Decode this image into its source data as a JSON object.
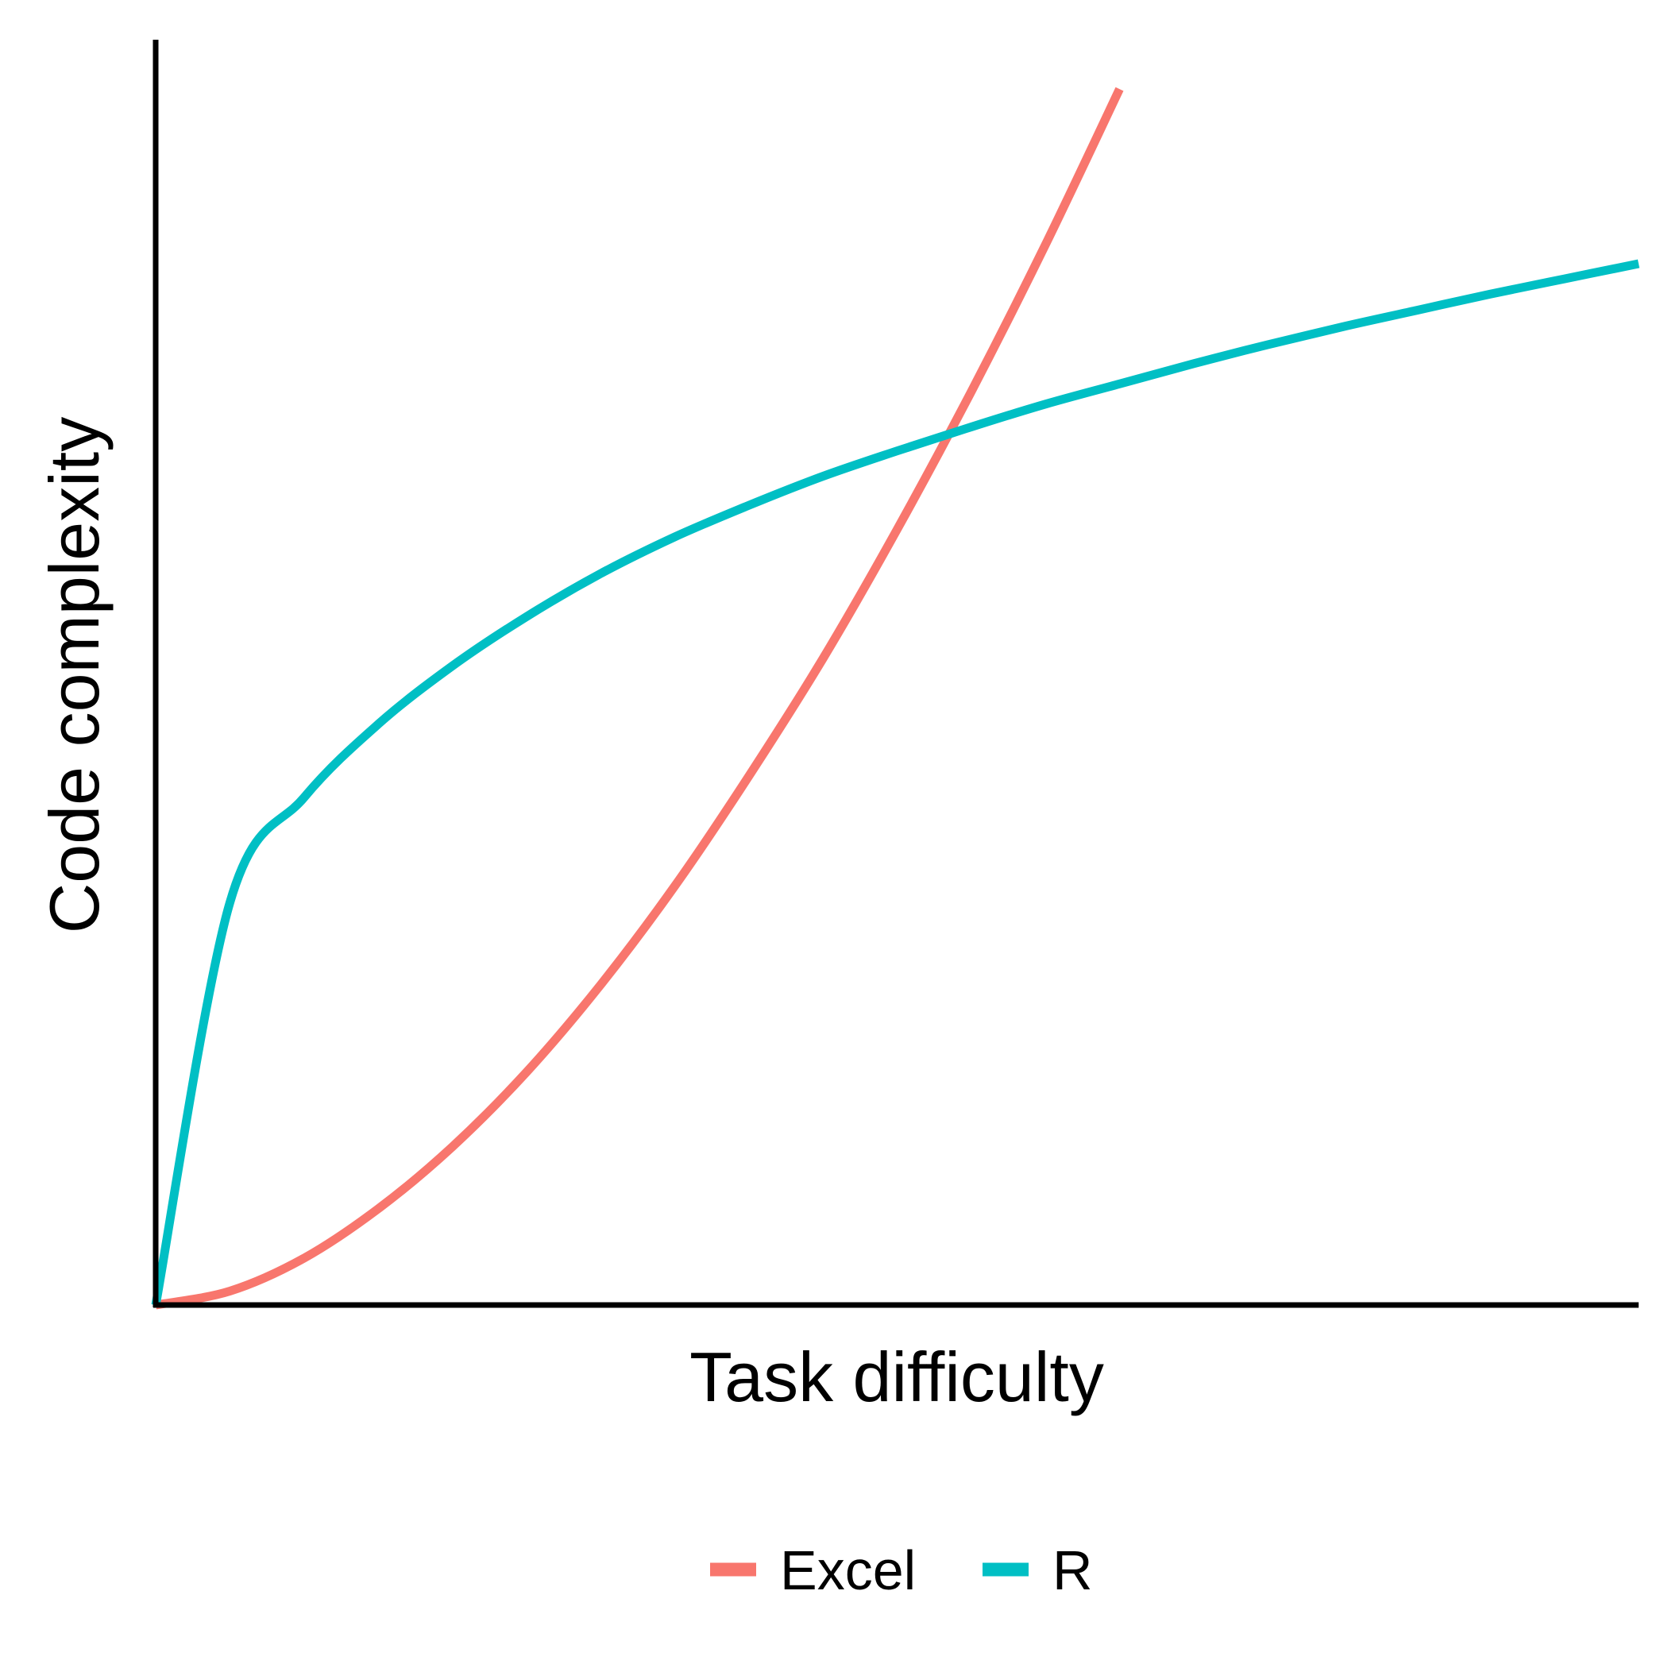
{
  "chart_data": {
    "type": "line",
    "title": "",
    "xlabel": "Task difficulty",
    "ylabel": "Code complexity",
    "xlim": [
      0,
      1
    ],
    "ylim": [
      0,
      1
    ],
    "grid": false,
    "axis_ticks": false,
    "legend_position": "bottom",
    "x": [
      0,
      0.05,
      0.1,
      0.15,
      0.2,
      0.25,
      0.3,
      0.35,
      0.4,
      0.45,
      0.5,
      0.55,
      0.6,
      0.65,
      0.7,
      0.75,
      0.8,
      0.85,
      0.9,
      0.95,
      1
    ],
    "series": [
      {
        "name": "Excel",
        "color": "#F8766D",
        "values": [
          0.0,
          0.011,
          0.037,
          0.076,
          0.125,
          0.184,
          0.253,
          0.331,
          0.418,
          0.511,
          0.613,
          0.722,
          0.838,
          0.961,
          null,
          null,
          null,
          null,
          null,
          null,
          null
        ]
      },
      {
        "name": "R",
        "color": "#00BFC4",
        "values": [
          0.0,
          0.318,
          0.401,
          0.459,
          0.505,
          0.544,
          0.578,
          0.607,
          0.632,
          0.655,
          0.675,
          0.694,
          0.712,
          0.728,
          0.744,
          0.759,
          0.773,
          0.786,
          0.799,
          0.811,
          0.823
        ]
      }
    ]
  }
}
